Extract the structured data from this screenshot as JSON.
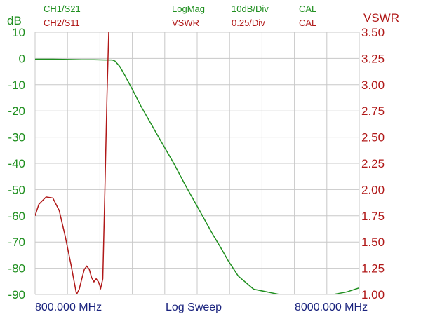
{
  "header": {
    "ch1_label": "CH1/S21",
    "ch1_format": "LogMag",
    "ch1_scale": "10dB/Div",
    "ch1_cal": "CAL",
    "ch2_label": "CH2/S11",
    "ch2_format": "VSWR",
    "ch2_scale": "0.25/Div",
    "ch2_cal": "CAL"
  },
  "axes": {
    "left_unit": "dB",
    "right_unit": "VSWR"
  },
  "footer": {
    "start": "800.000 MHz",
    "sweep": "Log Sweep",
    "stop": "8000.000 MHz"
  },
  "colors": {
    "ch1": "#1f8f1f",
    "ch2": "#b01818",
    "grid": "#c8c8c8",
    "footer": "#1a237e"
  },
  "chart_data": {
    "type": "line",
    "x_scale": "log",
    "x_unit": "MHz",
    "xlim": [
      600,
      10000
    ],
    "grid": true,
    "left_axis": {
      "label": "dB",
      "ylim": [
        -90,
        10
      ],
      "ticks": [
        10,
        0,
        -10,
        -20,
        -30,
        -40,
        -50,
        -60,
        -70,
        -80,
        -90
      ]
    },
    "right_axis": {
      "label": "VSWR",
      "ylim": [
        1.0,
        3.5
      ],
      "ticks": [
        "3.50",
        "3.25",
        "3.00",
        "2.75",
        "2.50",
        "2.25",
        "2.00",
        "1.75",
        "1.50",
        "1.25",
        "1.00"
      ]
    },
    "series": [
      {
        "name": "CH1/S21",
        "axis": "left",
        "x": [
          600,
          700,
          800,
          900,
          1000,
          1100,
          1170,
          1200,
          1250,
          1300,
          1400,
          1500,
          1600,
          1800,
          2000,
          2200,
          2500,
          2800,
          3000,
          3200,
          3500,
          4000,
          5000,
          6000,
          7000,
          8000,
          9000,
          10000
        ],
        "values": [
          -0.3,
          -0.3,
          -0.4,
          -0.5,
          -0.5,
          -0.6,
          -0.6,
          -1.0,
          -3.0,
          -6.0,
          -12.0,
          -18.0,
          -23.0,
          -32.0,
          -40.0,
          -48.0,
          -58.0,
          -67.0,
          -72.0,
          -77.0,
          -83.0,
          -88.0,
          -90.0,
          -90.0,
          -90.0,
          -90.0,
          -89.0,
          -87.5
        ]
      },
      {
        "name": "CH2/S11",
        "axis": "right",
        "x": [
          600,
          620,
          660,
          700,
          740,
          780,
          820,
          860,
          880,
          900,
          920,
          940,
          960,
          980,
          1000,
          1020,
          1040,
          1060,
          1080,
          1100,
          1120,
          1140,
          1160,
          1175,
          1200
        ],
        "values": [
          1.75,
          1.86,
          1.93,
          1.92,
          1.8,
          1.55,
          1.28,
          1.0,
          1.05,
          1.15,
          1.24,
          1.27,
          1.24,
          1.16,
          1.12,
          1.15,
          1.12,
          1.06,
          1.15,
          2.0,
          2.9,
          3.6,
          3.6,
          3.6,
          3.6
        ]
      }
    ]
  }
}
